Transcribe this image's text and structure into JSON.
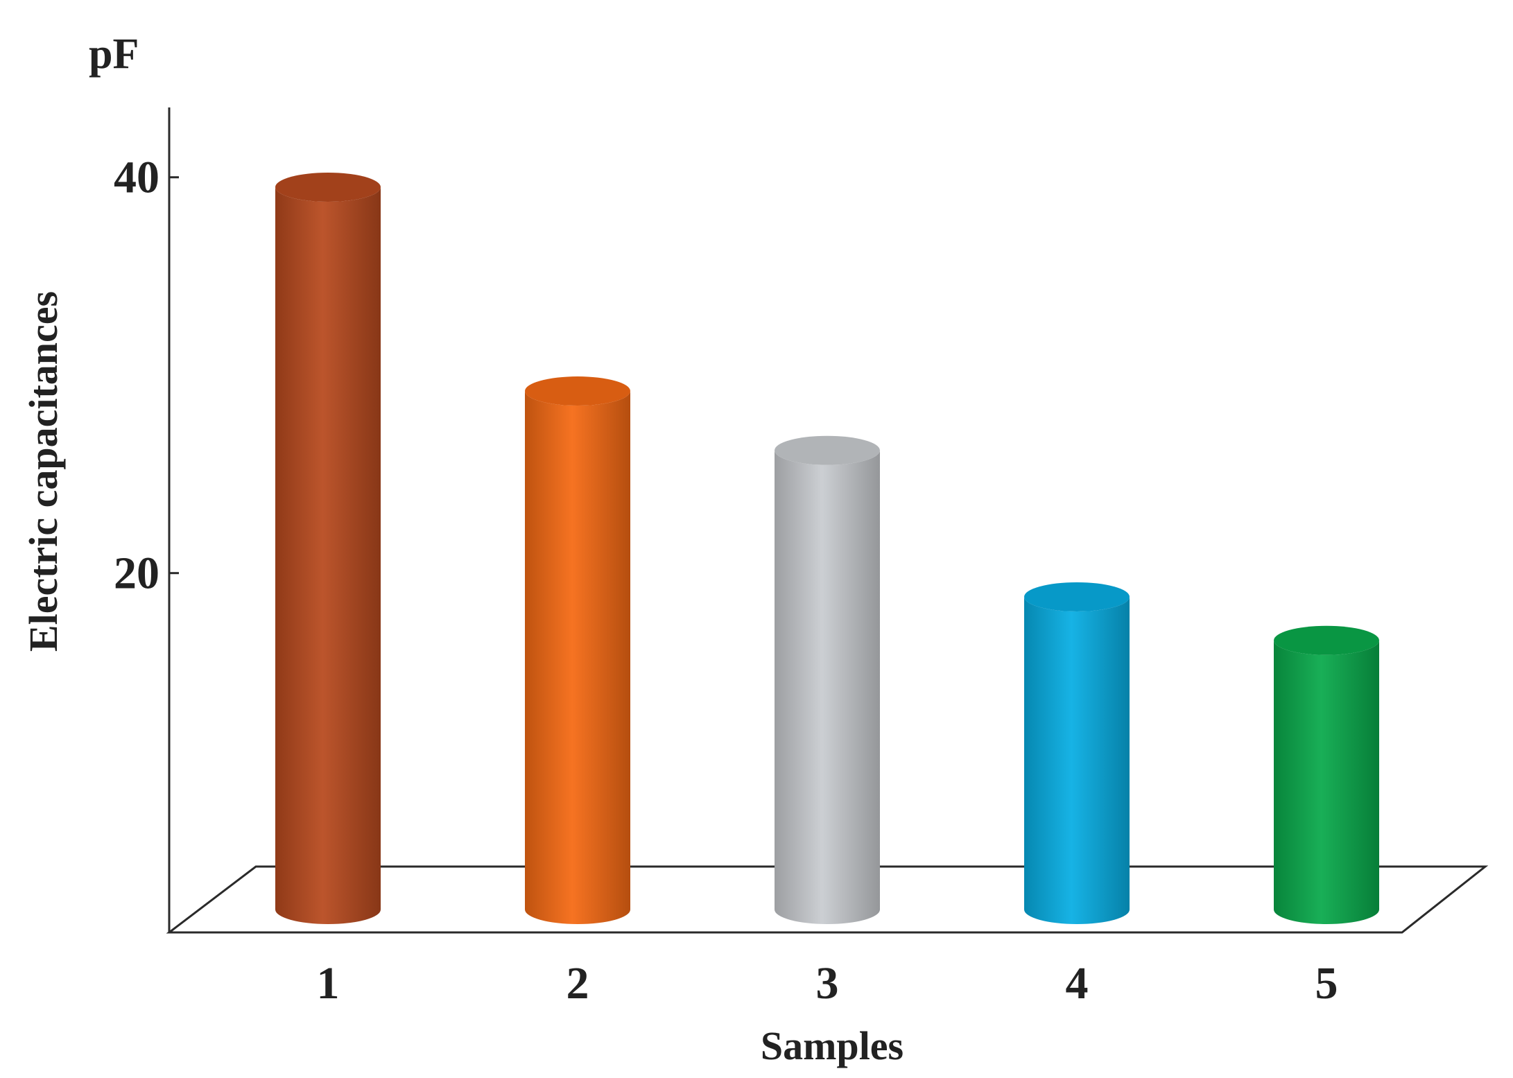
{
  "chart_data": {
    "type": "bar",
    "categories": [
      "1",
      "2",
      "3",
      "4",
      "5"
    ],
    "values": [
      39.5,
      29.2,
      26.2,
      18.8,
      16.6
    ],
    "colors": [
      "#b84a1f",
      "#f56a14",
      "#c9ccd0",
      "#08aee3",
      "#0aaa4c"
    ],
    "unit": "pF",
    "ylabel": "Electric capacitances",
    "xlabel": "Samples",
    "yticks": [
      20,
      40
    ],
    "ylim": [
      3,
      44
    ],
    "grid": false,
    "legend": "none",
    "style": "3d-cylinder"
  }
}
